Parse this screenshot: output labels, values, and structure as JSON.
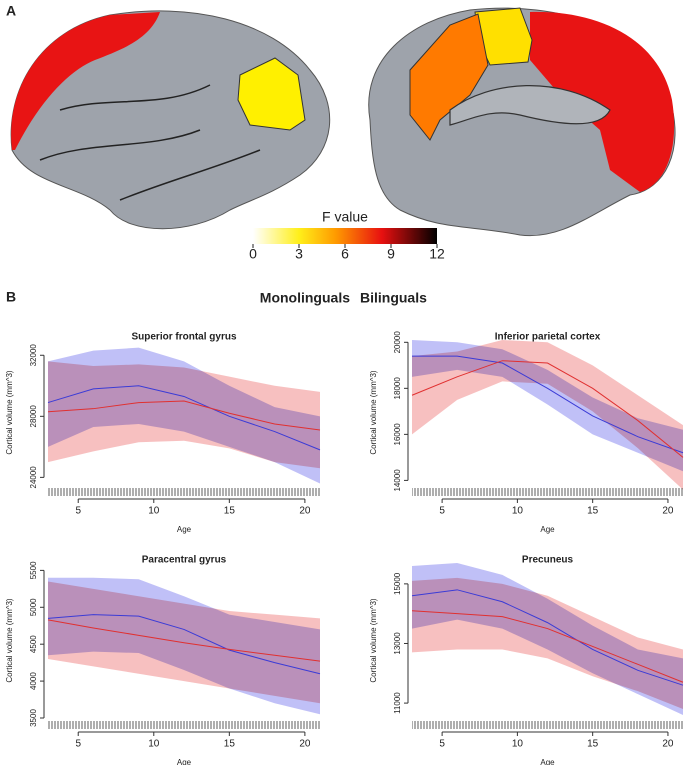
{
  "panels": {
    "a": "A",
    "b": "B"
  },
  "colorbar": {
    "title": "F value",
    "lim": [
      0,
      12
    ],
    "ticks": [
      0,
      3,
      6,
      9,
      12
    ]
  },
  "chart_data": [
    {
      "type": "line",
      "title": "Superior frontal gyrus",
      "x_label": "Age",
      "y_label": "Cortical volume (mm^3)",
      "x": [
        3,
        6,
        9,
        12,
        15,
        18,
        21
      ],
      "xlim": [
        3,
        21
      ],
      "xticks": [
        5,
        10,
        15,
        20
      ],
      "ylim": [
        23500,
        33000
      ],
      "yticks": [
        24000,
        28000,
        32000
      ],
      "series": [
        {
          "name": "Monolinguals",
          "color": "#3b3bd6",
          "band_color": "#8c8cf0",
          "values": [
            28900,
            29800,
            30000,
            29300,
            28000,
            27000,
            25800
          ],
          "lower": [
            26000,
            27300,
            27500,
            27000,
            26000,
            25000,
            23600
          ],
          "upper": [
            31600,
            32300,
            32500,
            31600,
            30000,
            28600,
            28000
          ]
        },
        {
          "name": "Bilinguals",
          "color": "#e03030",
          "band_color": "#f08c8c",
          "values": [
            28300,
            28500,
            28900,
            29000,
            28200,
            27500,
            27100
          ],
          "lower": [
            25000,
            25700,
            26300,
            26400,
            25900,
            25000,
            24600
          ],
          "upper": [
            31600,
            31300,
            31400,
            31200,
            30600,
            30000,
            29600
          ]
        }
      ]
    },
    {
      "type": "line",
      "title": "Inferior parietal cortex",
      "x_label": "Age",
      "y_label": "Cortical volume (mm^3)",
      "x": [
        3,
        6,
        9,
        12,
        15,
        18,
        21
      ],
      "xlim": [
        3,
        21
      ],
      "xticks": [
        5,
        10,
        15,
        20
      ],
      "ylim": [
        13800,
        20100
      ],
      "yticks": [
        14000,
        16000,
        18000,
        20000
      ],
      "series": [
        {
          "name": "Monolinguals",
          "color": "#3b3bd6",
          "band_color": "#8c8cf0",
          "values": [
            19400,
            19400,
            19100,
            18000,
            16800,
            15900,
            15200
          ],
          "lower": [
            18500,
            18800,
            18500,
            17300,
            16000,
            15200,
            14400
          ],
          "upper": [
            20100,
            20000,
            19700,
            18800,
            17600,
            16700,
            16200
          ]
        },
        {
          "name": "Bilinguals",
          "color": "#e03030",
          "band_color": "#f08c8c",
          "values": [
            17700,
            18500,
            19200,
            19100,
            18000,
            16600,
            15000
          ],
          "lower": [
            16000,
            17500,
            18300,
            18200,
            17000,
            15400,
            13600
          ],
          "upper": [
            19400,
            19600,
            20100,
            20000,
            19000,
            17700,
            16400
          ]
        }
      ]
    },
    {
      "type": "line",
      "title": "Paracentral gyrus",
      "x_label": "Age",
      "y_label": "Cortical volume (mm^3)",
      "x": [
        3,
        6,
        9,
        12,
        15,
        18,
        21
      ],
      "xlim": [
        3,
        21
      ],
      "xticks": [
        5,
        10,
        15,
        20
      ],
      "ylim": [
        3500,
        5600
      ],
      "yticks": [
        3500,
        4000,
        4500,
        5000,
        5500
      ],
      "series": [
        {
          "name": "Monolinguals",
          "color": "#3b3bd6",
          "band_color": "#8c8cf0",
          "values": [
            4850,
            4900,
            4880,
            4700,
            4420,
            4250,
            4100
          ],
          "lower": [
            4350,
            4400,
            4380,
            4150,
            3900,
            3700,
            3550
          ],
          "upper": [
            5400,
            5400,
            5380,
            5150,
            4900,
            4800,
            4700
          ]
        },
        {
          "name": "Bilinguals",
          "color": "#e03030",
          "band_color": "#f08c8c",
          "values": [
            4830,
            4720,
            4620,
            4520,
            4430,
            4350,
            4270
          ],
          "lower": [
            4300,
            4200,
            4100,
            4000,
            3900,
            3800,
            3700
          ],
          "upper": [
            5350,
            5250,
            5150,
            5050,
            4950,
            4900,
            4850
          ]
        }
      ]
    },
    {
      "type": "line",
      "title": "Precuneus",
      "x_label": "Age",
      "y_label": "Cortical volume (mm^3)",
      "x": [
        3,
        6,
        9,
        12,
        15,
        18,
        21
      ],
      "xlim": [
        3,
        21
      ],
      "xticks": [
        5,
        10,
        15,
        20
      ],
      "ylim": [
        10500,
        15700
      ],
      "yticks": [
        11000,
        13000,
        15000
      ],
      "series": [
        {
          "name": "Monolinguals",
          "color": "#3b3bd6",
          "band_color": "#8c8cf0",
          "values": [
            14600,
            14800,
            14400,
            13700,
            12800,
            12100,
            11600
          ],
          "lower": [
            13500,
            13800,
            13500,
            12800,
            12000,
            11300,
            10600
          ],
          "upper": [
            15600,
            15700,
            15300,
            14500,
            13600,
            12800,
            12500
          ]
        },
        {
          "name": "Bilinguals",
          "color": "#e03030",
          "band_color": "#f08c8c",
          "values": [
            14100,
            14000,
            13900,
            13500,
            12900,
            12300,
            11700
          ],
          "lower": [
            12700,
            12800,
            12800,
            12500,
            11900,
            11400,
            10800
          ],
          "upper": [
            15100,
            15200,
            15000,
            14600,
            13900,
            13200,
            12800
          ]
        }
      ]
    }
  ]
}
